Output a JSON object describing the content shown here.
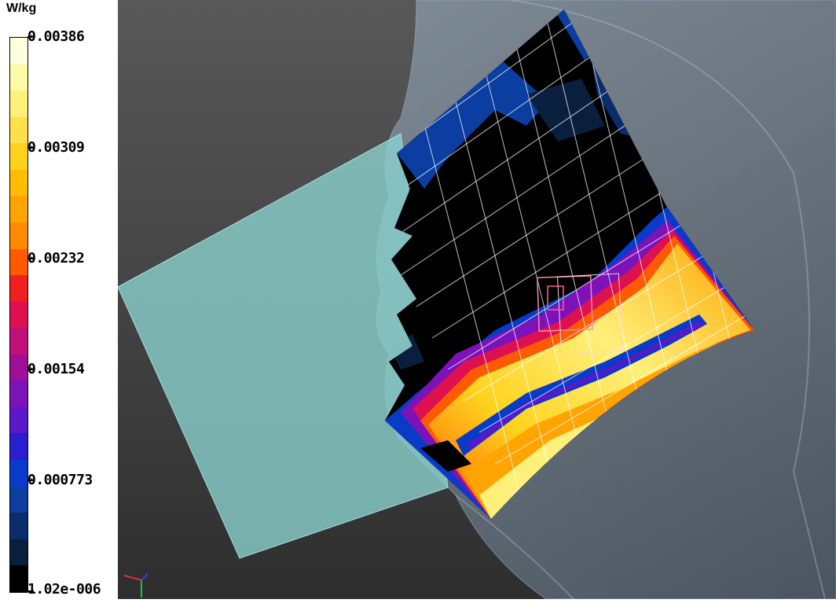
{
  "legend": {
    "unit": "W/kg",
    "ticks": [
      "0.00386",
      "0.00309",
      "0.00232",
      "0.00154",
      "0.000773",
      "1.02e-006"
    ],
    "colors": [
      "#000000",
      "#0a1f3d",
      "#0c2d6b",
      "#0b3ea0",
      "#0a3ac8",
      "#2a1ed0",
      "#5a18c8",
      "#7d12b8",
      "#a00f98",
      "#c2107a",
      "#dd1050",
      "#ef2020",
      "#ff5a00",
      "#ff8a00",
      "#ffa400",
      "#ffbe00",
      "#ffd21e",
      "#ffe04a",
      "#fff07a",
      "#fffaa8",
      "#ffffe0"
    ]
  },
  "viewport": {
    "background": "#4a4a4a",
    "head_color": "#8fa6be",
    "phantom_plate_color": "#8ad4d0",
    "grid_color": "#ffffff",
    "probe_box_color": "#ff8aa0"
  },
  "axis_triad": {
    "x_color": "#e03030",
    "y_color": "#20c040",
    "z_color": "#3040e0"
  }
}
